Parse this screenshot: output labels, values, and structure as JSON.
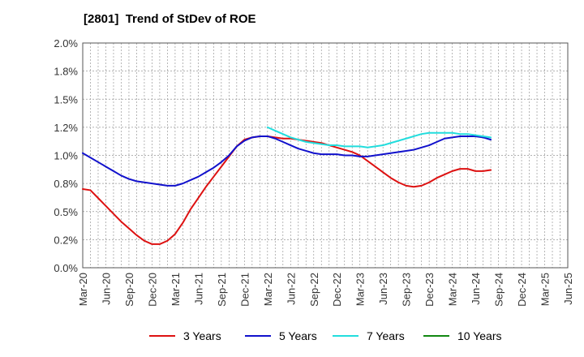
{
  "chart_data": {
    "type": "line",
    "title": "[2801]  Trend of StDev of ROE",
    "xlabel": "",
    "ylabel": "",
    "ylim": [
      0,
      2
    ],
    "y_ticks": [
      "0.0%",
      "0.2%",
      "0.5%",
      "0.8%",
      "1.0%",
      "1.2%",
      "1.5%",
      "1.8%",
      "2.0%"
    ],
    "x_ticks": [
      "Mar-20",
      "Jun-20",
      "Sep-20",
      "Dec-20",
      "Mar-21",
      "Jun-21",
      "Sep-21",
      "Dec-21",
      "Mar-22",
      "Jun-22",
      "Sep-22",
      "Dec-22",
      "Mar-23",
      "Jun-23",
      "Sep-23",
      "Dec-23",
      "Mar-24",
      "Jun-24",
      "Sep-24",
      "Dec-24",
      "Mar-25",
      "Jun-25"
    ],
    "grid": true,
    "legend_position": "bottom",
    "series": [
      {
        "name": "3 Years",
        "color": "#dd1111",
        "points": [
          [
            0,
            0.7
          ],
          [
            1,
            0.69
          ],
          [
            2,
            0.62
          ],
          [
            3,
            0.55
          ],
          [
            4,
            0.48
          ],
          [
            5,
            0.41
          ],
          [
            6,
            0.35
          ],
          [
            7,
            0.29
          ],
          [
            8,
            0.24
          ],
          [
            9,
            0.21
          ],
          [
            10,
            0.21
          ],
          [
            11,
            0.24
          ],
          [
            12,
            0.3
          ],
          [
            13,
            0.4
          ],
          [
            14,
            0.52
          ],
          [
            15,
            0.62
          ],
          [
            16,
            0.72
          ],
          [
            17,
            0.81
          ],
          [
            18,
            0.9
          ],
          [
            19,
            0.99
          ],
          [
            20,
            1.08
          ],
          [
            21,
            1.14
          ],
          [
            22,
            1.16
          ],
          [
            23,
            1.17
          ],
          [
            24,
            1.17
          ],
          [
            25,
            1.16
          ],
          [
            26,
            1.15
          ],
          [
            27,
            1.15
          ],
          [
            28,
            1.14
          ],
          [
            29,
            1.13
          ],
          [
            30,
            1.12
          ],
          [
            31,
            1.11
          ],
          [
            32,
            1.09
          ],
          [
            33,
            1.07
          ],
          [
            34,
            1.05
          ],
          [
            35,
            1.03
          ],
          [
            36,
            1.0
          ],
          [
            37,
            0.95
          ],
          [
            38,
            0.9
          ],
          [
            39,
            0.85
          ],
          [
            40,
            0.8
          ],
          [
            41,
            0.76
          ],
          [
            42,
            0.73
          ],
          [
            43,
            0.72
          ],
          [
            44,
            0.73
          ],
          [
            45,
            0.76
          ],
          [
            46,
            0.8
          ],
          [
            47,
            0.83
          ],
          [
            48,
            0.86
          ],
          [
            49,
            0.88
          ],
          [
            50,
            0.88
          ],
          [
            51,
            0.86
          ],
          [
            52,
            0.86
          ],
          [
            53,
            0.87
          ]
        ]
      },
      {
        "name": "5 Years",
        "color": "#1111cc",
        "points": [
          [
            0,
            1.02
          ],
          [
            1,
            0.98
          ],
          [
            2,
            0.94
          ],
          [
            3,
            0.9
          ],
          [
            4,
            0.86
          ],
          [
            5,
            0.82
          ],
          [
            6,
            0.79
          ],
          [
            7,
            0.77
          ],
          [
            8,
            0.76
          ],
          [
            9,
            0.75
          ],
          [
            10,
            0.74
          ],
          [
            11,
            0.73
          ],
          [
            12,
            0.73
          ],
          [
            13,
            0.75
          ],
          [
            14,
            0.78
          ],
          [
            15,
            0.81
          ],
          [
            16,
            0.85
          ],
          [
            17,
            0.89
          ],
          [
            18,
            0.94
          ],
          [
            19,
            1.0
          ],
          [
            20,
            1.08
          ],
          [
            21,
            1.13
          ],
          [
            22,
            1.16
          ],
          [
            23,
            1.17
          ],
          [
            24,
            1.17
          ],
          [
            25,
            1.15
          ],
          [
            26,
            1.12
          ],
          [
            27,
            1.09
          ],
          [
            28,
            1.06
          ],
          [
            29,
            1.04
          ],
          [
            30,
            1.02
          ],
          [
            31,
            1.01
          ],
          [
            32,
            1.01
          ],
          [
            33,
            1.01
          ],
          [
            34,
            1.0
          ],
          [
            35,
            1.0
          ],
          [
            36,
            0.99
          ],
          [
            37,
            0.99
          ],
          [
            38,
            1.0
          ],
          [
            39,
            1.01
          ],
          [
            40,
            1.02
          ],
          [
            41,
            1.03
          ],
          [
            42,
            1.04
          ],
          [
            43,
            1.05
          ],
          [
            44,
            1.07
          ],
          [
            45,
            1.09
          ],
          [
            46,
            1.12
          ],
          [
            47,
            1.15
          ],
          [
            48,
            1.16
          ],
          [
            49,
            1.17
          ],
          [
            50,
            1.17
          ],
          [
            51,
            1.17
          ],
          [
            52,
            1.16
          ],
          [
            53,
            1.14
          ]
        ]
      },
      {
        "name": "7 Years",
        "color": "#22dddd",
        "points": [
          [
            24,
            1.25
          ],
          [
            25,
            1.22
          ],
          [
            26,
            1.19
          ],
          [
            27,
            1.16
          ],
          [
            28,
            1.14
          ],
          [
            29,
            1.12
          ],
          [
            30,
            1.11
          ],
          [
            31,
            1.1
          ],
          [
            32,
            1.09
          ],
          [
            33,
            1.09
          ],
          [
            34,
            1.08
          ],
          [
            35,
            1.08
          ],
          [
            36,
            1.08
          ],
          [
            37,
            1.07
          ],
          [
            38,
            1.08
          ],
          [
            39,
            1.09
          ],
          [
            40,
            1.11
          ],
          [
            41,
            1.13
          ],
          [
            42,
            1.15
          ],
          [
            43,
            1.17
          ],
          [
            44,
            1.19
          ],
          [
            45,
            1.2
          ],
          [
            46,
            1.2
          ],
          [
            47,
            1.2
          ],
          [
            48,
            1.2
          ],
          [
            49,
            1.19
          ],
          [
            50,
            1.19
          ],
          [
            51,
            1.18
          ],
          [
            52,
            1.17
          ],
          [
            53,
            1.16
          ]
        ]
      },
      {
        "name": "10 Years",
        "color": "#118811",
        "points": []
      }
    ]
  }
}
